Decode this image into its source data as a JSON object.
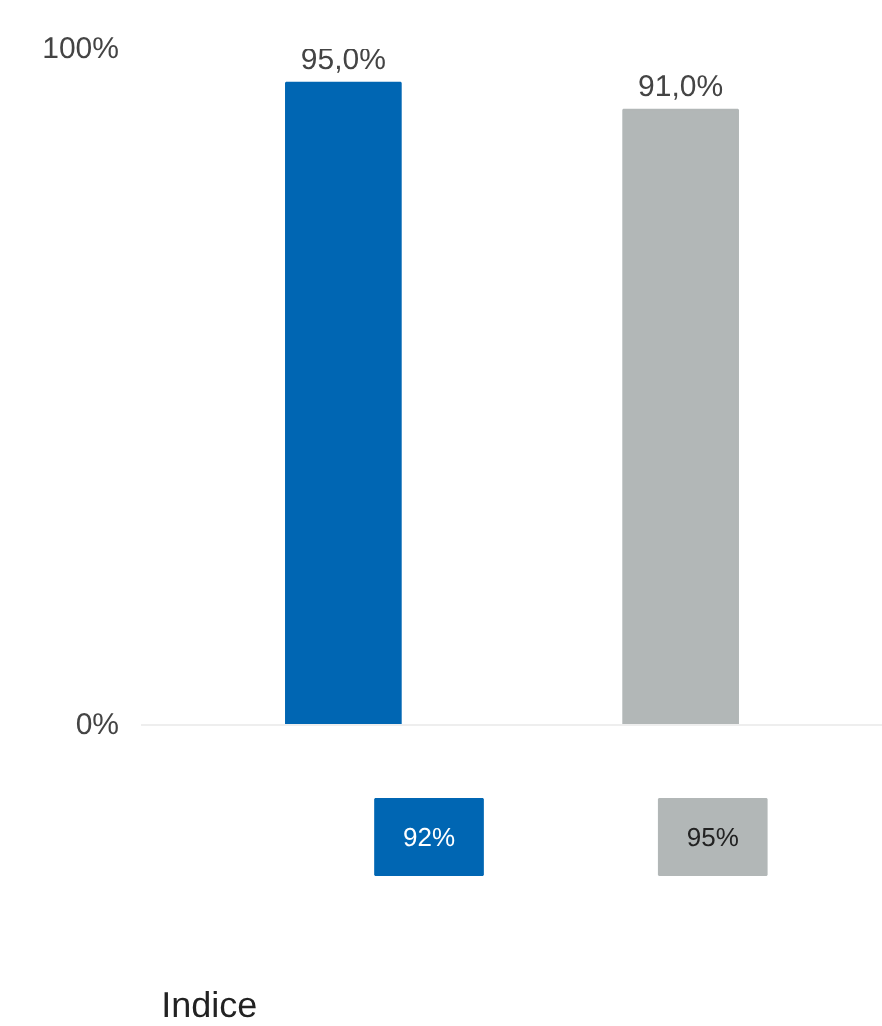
{
  "chart_data": {
    "type": "bar",
    "categories": [
      "92%",
      "95%"
    ],
    "values": [
      95.0,
      91.0
    ],
    "colors": [
      "#0066b3",
      "#b2b7b7"
    ],
    "value_labels": [
      "95,0%",
      "91,0%"
    ],
    "ylim": [
      0,
      100
    ],
    "yticks": [
      {
        "value": 0,
        "label": "0%"
      },
      {
        "value": 100,
        "label": "100%"
      }
    ],
    "annotations": [
      "Indice"
    ]
  }
}
